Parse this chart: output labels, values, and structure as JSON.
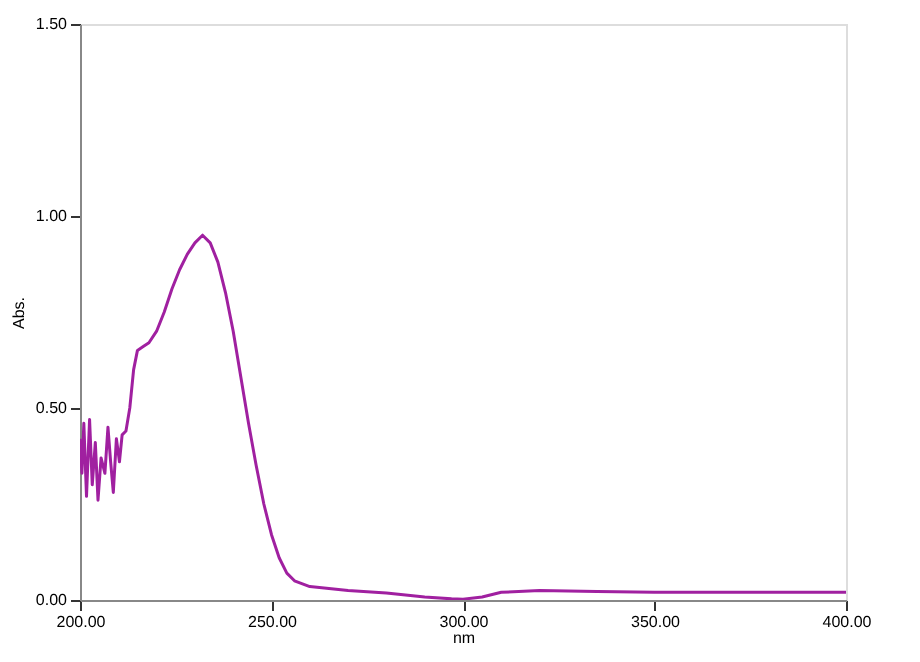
{
  "chart_data": {
    "type": "line",
    "xlabel": "nm",
    "ylabel": "Abs.",
    "x": [
      200,
      200.5,
      201,
      201.7,
      202.5,
      203.2,
      204,
      204.7,
      205.5,
      206.5,
      207.3,
      208,
      208.7,
      209.5,
      210.3,
      211,
      212,
      213,
      214,
      215,
      216.5,
      218,
      220,
      222,
      224,
      226,
      228,
      230,
      232,
      234,
      236,
      238,
      240,
      242,
      244,
      246,
      248,
      250,
      252,
      254,
      256,
      260,
      270,
      280,
      290,
      297,
      300,
      305,
      310,
      320,
      335,
      350,
      370,
      400
    ],
    "series": [
      {
        "color": "#a020a0",
        "values": [
          0.42,
          0.33,
          0.46,
          0.27,
          0.47,
          0.3,
          0.41,
          0.26,
          0.37,
          0.33,
          0.45,
          0.36,
          0.28,
          0.42,
          0.36,
          0.43,
          0.44,
          0.5,
          0.6,
          0.65,
          0.66,
          0.67,
          0.7,
          0.75,
          0.81,
          0.86,
          0.9,
          0.93,
          0.95,
          0.93,
          0.88,
          0.8,
          0.7,
          0.58,
          0.46,
          0.35,
          0.25,
          0.17,
          0.11,
          0.07,
          0.05,
          0.035,
          0.025,
          0.018,
          0.008,
          0.003,
          0.002,
          0.008,
          0.02,
          0.025,
          0.022,
          0.02,
          0.02,
          0.02
        ]
      }
    ],
    "xlim": [
      200,
      400
    ],
    "ylim": [
      0,
      1.5
    ],
    "xticks": [
      {
        "value": 200,
        "label": "200.00"
      },
      {
        "value": 250,
        "label": "250.00"
      },
      {
        "value": 300,
        "label": "300.00"
      },
      {
        "value": 350,
        "label": "350.00"
      },
      {
        "value": 400,
        "label": "400.00"
      }
    ],
    "yticks": [
      {
        "value": 0,
        "label": "0.00"
      },
      {
        "value": 0.5,
        "label": "0.50"
      },
      {
        "value": 1.0,
        "label": "1.00"
      },
      {
        "value": 1.5,
        "label": "1.50"
      }
    ],
    "grid": false,
    "line_style": "solid"
  }
}
